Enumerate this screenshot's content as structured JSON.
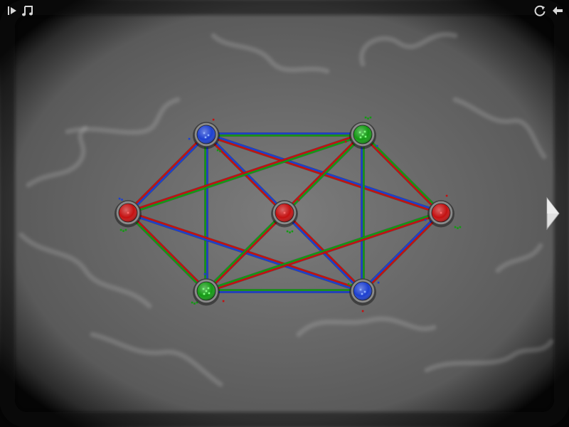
{
  "game": {
    "colors": {
      "red": "#c41010",
      "green": "#139a13",
      "blue": "#1c3fd0",
      "background": "#6e6e6e",
      "vignette": "#050505",
      "hud_icon": "#d8d8d8"
    },
    "nodes": [
      {
        "id": "blue-top-left",
        "color": "blue",
        "dots": 3
      },
      {
        "id": "green-top-right",
        "color": "green",
        "dots": 5
      },
      {
        "id": "red-left",
        "color": "red",
        "dots": 1
      },
      {
        "id": "red-center",
        "color": "red",
        "dots": 1
      },
      {
        "id": "red-right",
        "color": "red",
        "dots": 1
      },
      {
        "id": "green-bottom-left",
        "color": "green",
        "dots": 5
      },
      {
        "id": "blue-bottom-right",
        "color": "blue",
        "dots": 3
      }
    ],
    "edges": [
      {
        "from": "blue-top-left",
        "to": "green-top-right",
        "colors": [
          "blue",
          "green"
        ]
      },
      {
        "from": "blue-top-left",
        "to": "red-left",
        "colors": [
          "blue",
          "red"
        ]
      },
      {
        "from": "blue-top-left",
        "to": "green-bottom-left",
        "colors": [
          "blue",
          "green"
        ]
      },
      {
        "from": "blue-top-left",
        "to": "red-center",
        "colors": [
          "blue",
          "red"
        ]
      },
      {
        "from": "blue-top-left",
        "to": "red-right",
        "colors": [
          "blue",
          "red"
        ]
      },
      {
        "from": "green-top-right",
        "to": "red-left",
        "colors": [
          "green",
          "red"
        ]
      },
      {
        "from": "green-top-right",
        "to": "red-center",
        "colors": [
          "green",
          "red"
        ]
      },
      {
        "from": "green-top-right",
        "to": "red-right",
        "colors": [
          "green",
          "red"
        ]
      },
      {
        "from": "green-top-right",
        "to": "blue-bottom-right",
        "colors": [
          "green",
          "blue"
        ]
      },
      {
        "from": "red-left",
        "to": "green-bottom-left",
        "colors": [
          "red",
          "green"
        ]
      },
      {
        "from": "red-left",
        "to": "blue-bottom-right",
        "colors": [
          "red",
          "blue"
        ]
      },
      {
        "from": "red-center",
        "to": "green-bottom-left",
        "colors": [
          "red",
          "green"
        ]
      },
      {
        "from": "red-center",
        "to": "blue-bottom-right",
        "colors": [
          "red",
          "blue"
        ]
      },
      {
        "from": "green-bottom-left",
        "to": "red-right",
        "colors": [
          "green",
          "red"
        ]
      },
      {
        "from": "green-bottom-left",
        "to": "blue-bottom-right",
        "colors": [
          "green",
          "blue"
        ]
      },
      {
        "from": "red-right",
        "to": "blue-bottom-right",
        "colors": [
          "red",
          "blue"
        ]
      }
    ]
  },
  "hud": {
    "menu_icon": "play-menu-icon",
    "music_icon": "music-note-icon",
    "restart_icon": "restart-icon",
    "back_icon": "back-arrow-icon",
    "next_icon": "next-arrow-icon"
  }
}
